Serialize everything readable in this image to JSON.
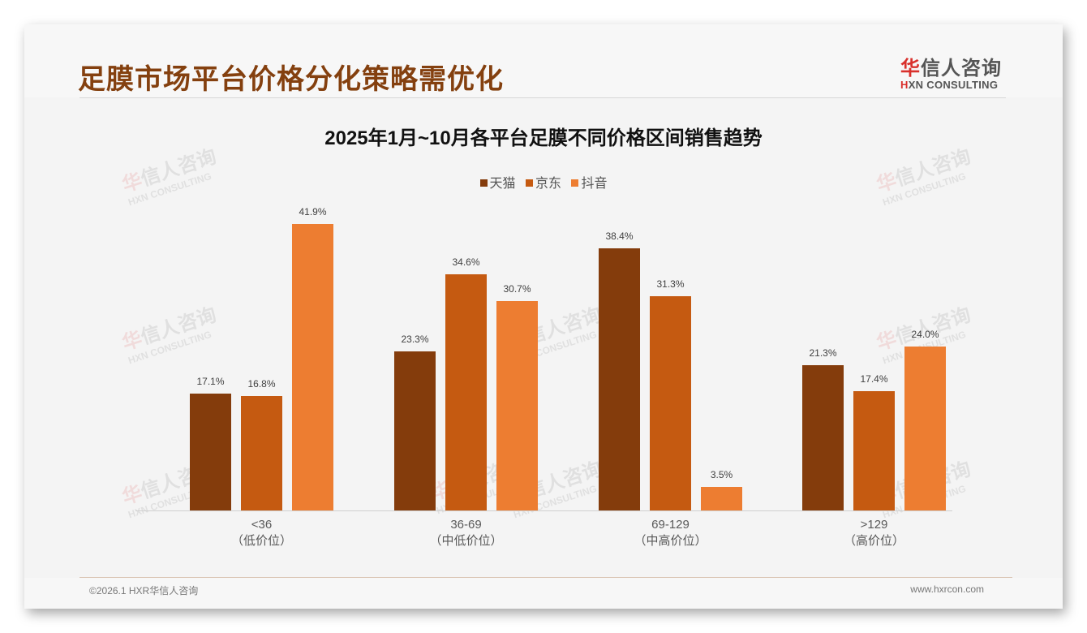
{
  "header": {
    "title": "足膜市场平台价格分化策略需优化",
    "logo_cn_accent": "华",
    "logo_cn_rest": "信人咨询",
    "logo_en_accent": "H",
    "logo_en_rest": "XN CONSULTING"
  },
  "watermark": {
    "cn_accent": "华",
    "cn_rest": "信人咨询",
    "en": "HXN CONSULTING"
  },
  "colors": {
    "tmall": "#843c0c",
    "jd": "#c55a11",
    "douyin": "#ed7d31",
    "title": "#84400f",
    "logo_red": "#d9302c"
  },
  "chart_data": {
    "type": "bar",
    "title": "2025年1月~10月各平台足膜不同价格区间销售趋势",
    "xlabel": "",
    "ylabel": "",
    "ylim": [
      0,
      45
    ],
    "grid": false,
    "legend_position": "top",
    "categories": [
      "<36（低价位）",
      "36-69（中低价位）",
      "69-129（中高价位）",
      ">129（高价位）"
    ],
    "category_lines": [
      {
        "range": "<36",
        "tier": "（低价位）"
      },
      {
        "range": "36-69",
        "tier": "（中低价位）"
      },
      {
        "range": "69-129",
        "tier": "（中高价位）"
      },
      {
        "range": ">129",
        "tier": "（高价位）"
      }
    ],
    "series": [
      {
        "name": "天猫",
        "color": "#843c0c",
        "values": [
          17.1,
          23.3,
          38.4,
          21.3
        ],
        "labels": [
          "17.1%",
          "23.3%",
          "38.4%",
          "21.3%"
        ]
      },
      {
        "name": "京东",
        "color": "#c55a11",
        "values": [
          16.8,
          34.6,
          31.3,
          17.4
        ],
        "labels": [
          "16.8%",
          "34.6%",
          "31.3%",
          "17.4%"
        ]
      },
      {
        "name": "抖音",
        "color": "#ed7d31",
        "values": [
          41.9,
          30.7,
          3.5,
          24.0
        ],
        "labels": [
          "41.9%",
          "30.7%",
          "3.5%",
          "24.0%"
        ]
      }
    ]
  },
  "footer": {
    "left": "©2026.1 HXR华信人咨询",
    "right": "www.hxrcon.com"
  }
}
